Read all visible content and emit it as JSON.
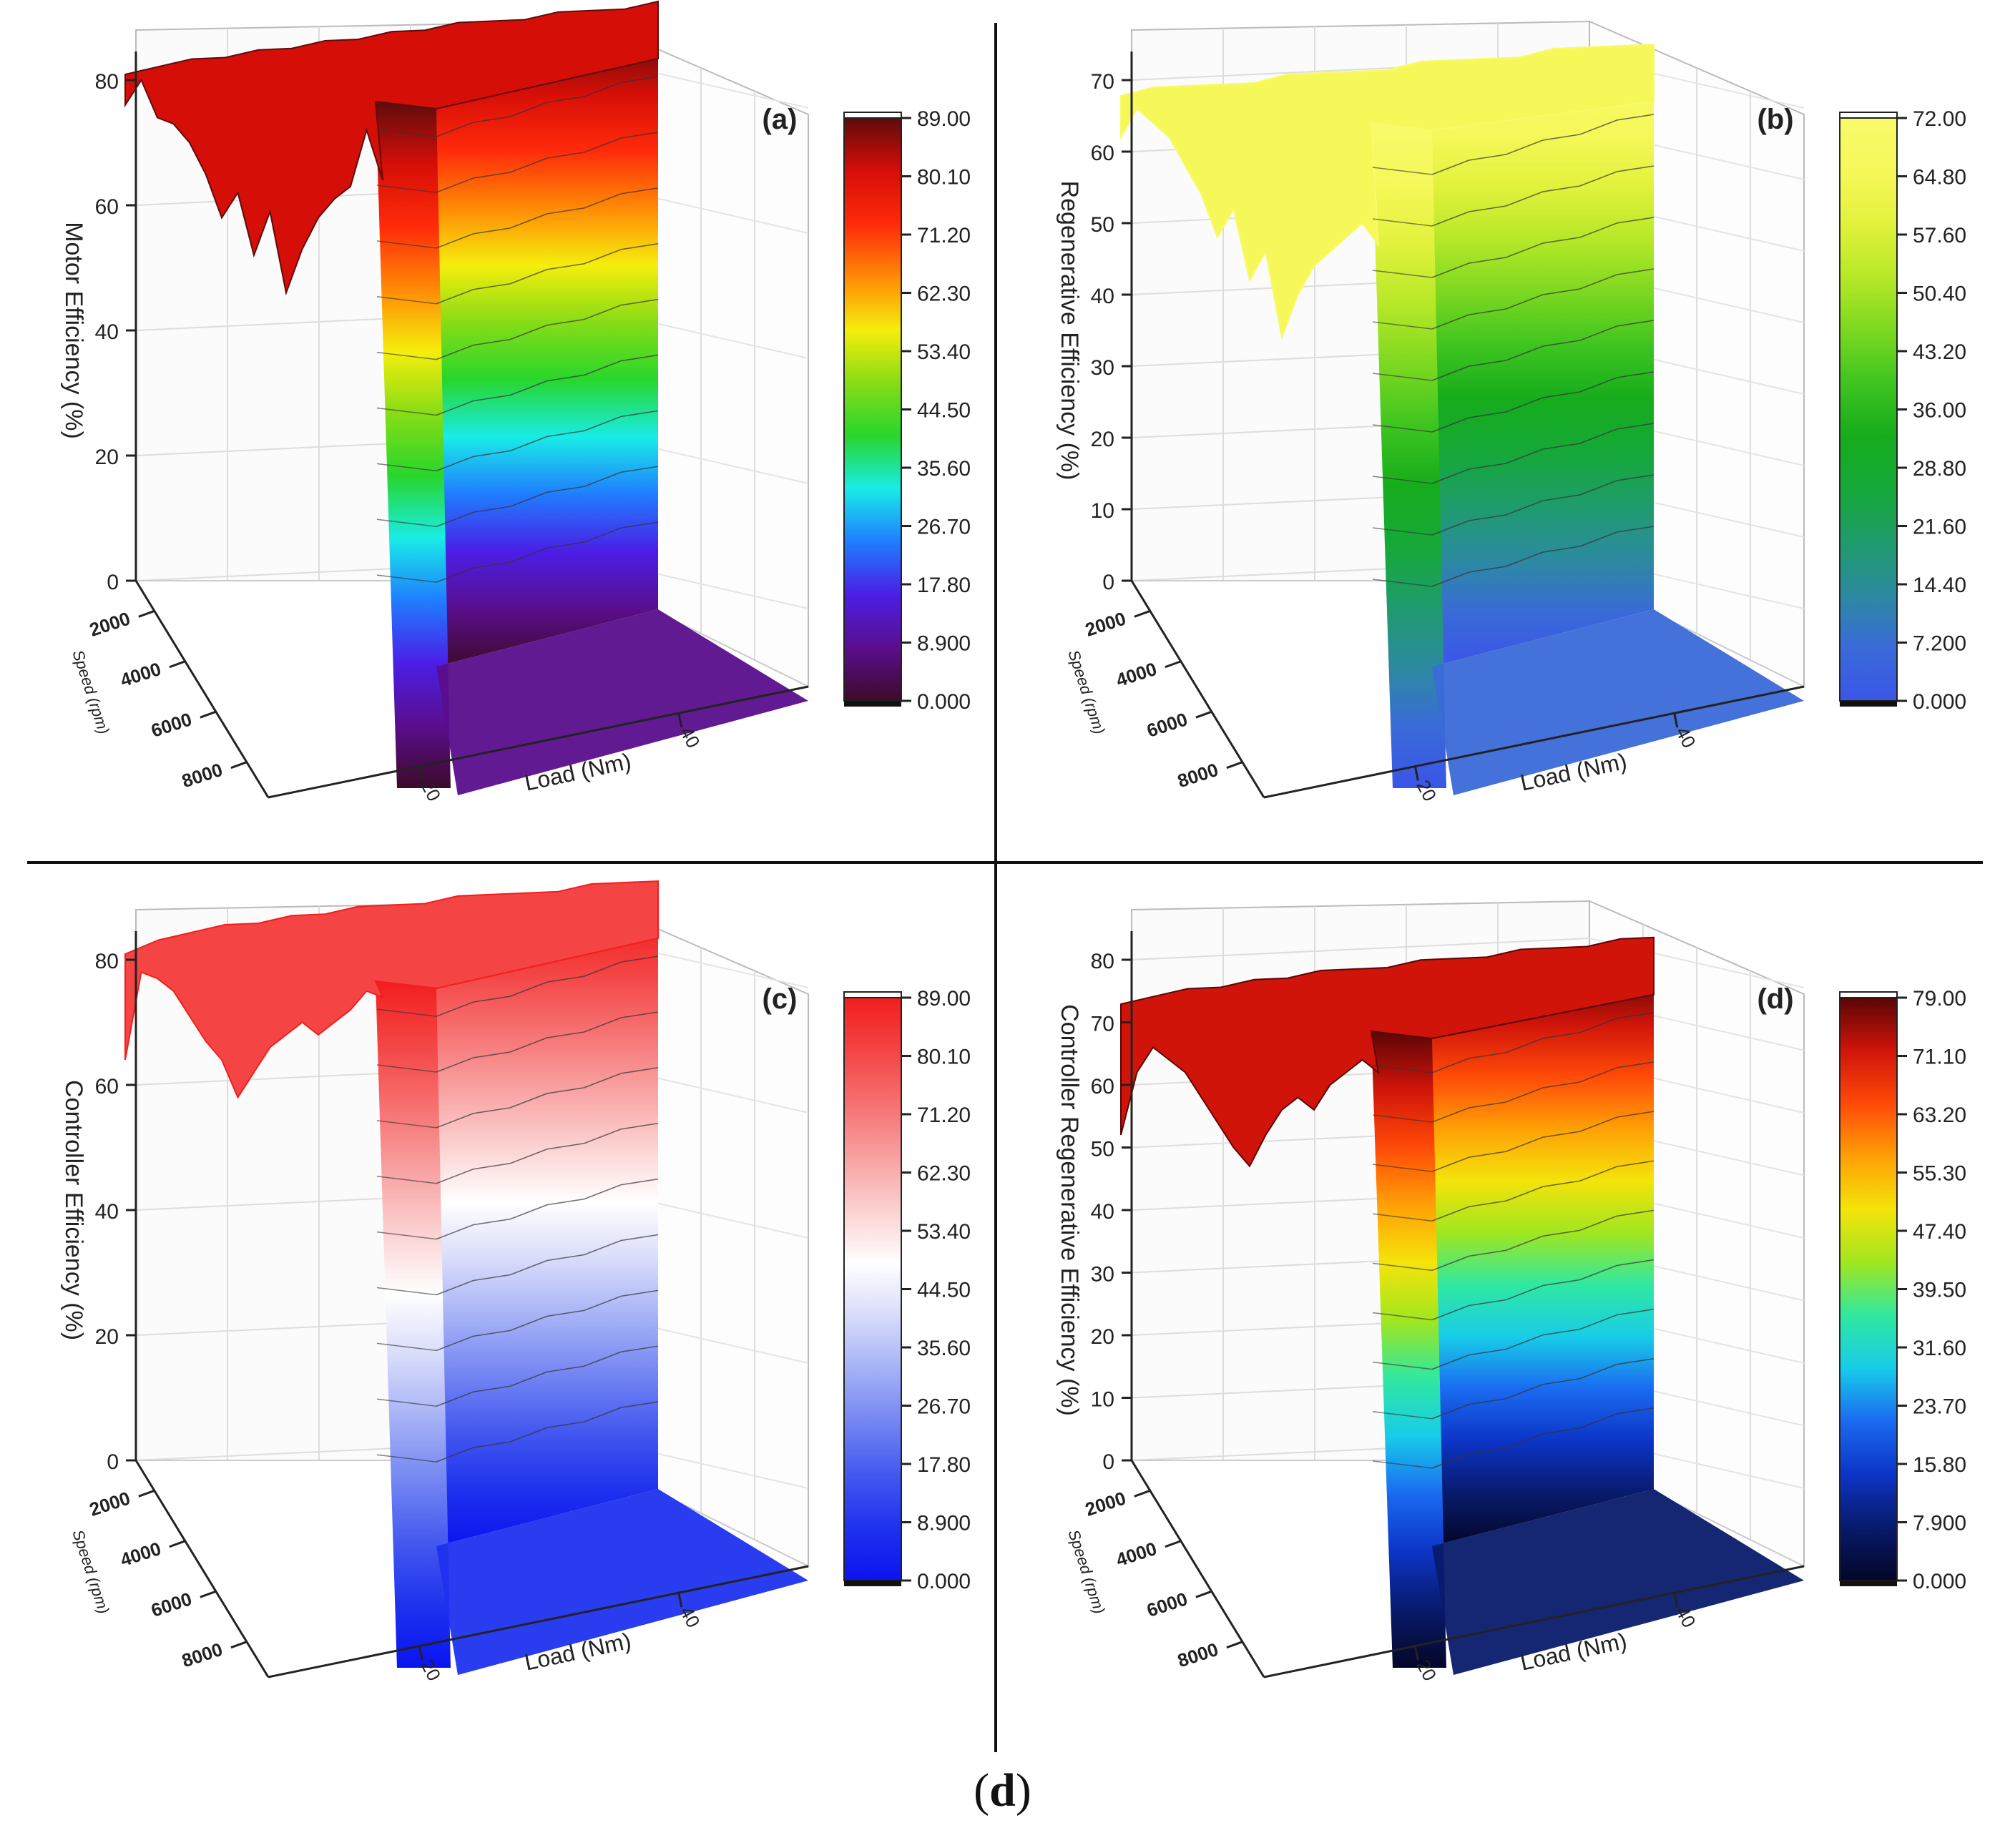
{
  "figure": {
    "caption_open": "(",
    "caption_letter": "d",
    "caption_close": ")"
  },
  "chart_data": [
    {
      "type": "surface3d",
      "panel_label": "(a)",
      "zlabel": "Motor Efficiency (%)",
      "xlabel": "Load (Nm)",
      "ylabel": "Speed (rpm)",
      "z_ticks": [
        "0",
        "20",
        "40",
        "60",
        "80"
      ],
      "speed_ticks": [
        "2000",
        "4000",
        "6000",
        "8000"
      ],
      "load_ticks": [
        "20",
        "40"
      ],
      "zlim": [
        0,
        89
      ],
      "colorbar_ticks": [
        "89.00",
        "80.10",
        "71.20",
        "62.30",
        "53.40",
        "44.50",
        "35.60",
        "26.70",
        "17.80",
        "8.900",
        "0.000"
      ],
      "colormap": [
        "#3d0a2a",
        "#5a0e8c",
        "#4b1ee6",
        "#1f7dff",
        "#19ece6",
        "#28d62c",
        "#86dc16",
        "#f5ee0c",
        "#ff8a06",
        "#ff2a0a",
        "#d60e08",
        "#5e0c0c"
      ],
      "contour_levels": [
        8.9,
        17.8,
        26.7,
        35.6,
        44.5,
        53.4,
        62.3,
        71.2,
        80.1
      ],
      "top_ridge_values": [
        76,
        80,
        74,
        73,
        70,
        65,
        58,
        62,
        52,
        59,
        46,
        53,
        58,
        61,
        63,
        72,
        64
      ],
      "top_plateau_values": [
        80,
        81,
        82,
        82,
        83,
        83,
        84,
        84,
        85,
        85,
        86,
        86,
        86,
        87,
        87,
        87,
        88
      ]
    },
    {
      "type": "surface3d",
      "panel_label": "(b)",
      "zlabel": "Regenerative Efficiency (%)",
      "xlabel": "Load (Nm)",
      "ylabel": "Speed (rpm)",
      "z_ticks": [
        "0",
        "10",
        "20",
        "30",
        "40",
        "50",
        "60",
        "70"
      ],
      "speed_ticks": [
        "2000",
        "4000",
        "6000",
        "8000"
      ],
      "load_ticks": [
        "20",
        "40"
      ],
      "zlim": [
        0,
        72
      ],
      "colorbar_ticks": [
        "72.00",
        "64.80",
        "57.60",
        "50.40",
        "43.20",
        "36.00",
        "28.80",
        "21.60",
        "14.40",
        "7.200",
        "0.000"
      ],
      "colormap": [
        "#3a55e8",
        "#3a6ad8",
        "#2c8aa0",
        "#1f9c6c",
        "#16a838",
        "#16ac1c",
        "#3ec420",
        "#7cd820",
        "#b6e828",
        "#e2f23c",
        "#f6f85a",
        "#f8fa6a"
      ],
      "contour_levels": [
        7.2,
        14.4,
        21.6,
        28.8,
        36,
        43.2,
        50.4,
        57.6,
        64.8
      ],
      "top_ridge_values": [
        62,
        66,
        64,
        62,
        58,
        54,
        48,
        52,
        42,
        46,
        34,
        40,
        44,
        46,
        48,
        50,
        47
      ],
      "top_plateau_values": [
        67,
        68,
        68,
        68,
        68,
        69,
        69,
        69,
        69,
        70,
        70,
        70,
        70,
        71,
        71,
        71,
        71
      ]
    },
    {
      "type": "surface3d",
      "panel_label": "(c)",
      "zlabel": "Controller Efficiency (%)",
      "xlabel": "Load (Nm)",
      "ylabel": "Speed (rpm)",
      "z_ticks": [
        "0",
        "20",
        "40",
        "60",
        "80"
      ],
      "speed_ticks": [
        "2000",
        "4000",
        "6000",
        "8000"
      ],
      "load_ticks": [
        "20",
        "40"
      ],
      "zlim": [
        0,
        89
      ],
      "colorbar_ticks": [
        "89.00",
        "80.10",
        "71.20",
        "62.30",
        "53.40",
        "44.50",
        "35.60",
        "26.70",
        "17.80",
        "8.900",
        "0.000"
      ],
      "colormap": [
        "#0a14f0",
        "#1e32ee",
        "#4458f0",
        "#7486f2",
        "#a6b2f6",
        "#d8dcfa",
        "#ffffff",
        "#fbd0d0",
        "#f8a0a0",
        "#f67070",
        "#f44444",
        "#f21e1e"
      ],
      "contour_levels": [
        8.9,
        17.8,
        26.7,
        35.6,
        44.5,
        53.4,
        62.3,
        71.2,
        80.1
      ],
      "top_ridge_values": [
        64,
        78,
        77,
        75,
        71,
        67,
        64,
        58,
        62,
        66,
        68,
        70,
        68,
        70,
        72,
        75,
        74
      ],
      "top_plateau_values": [
        80,
        82,
        83,
        84,
        84,
        85,
        85,
        86,
        86,
        86,
        87,
        87,
        87,
        87,
        88,
        88,
        88
      ]
    },
    {
      "type": "surface3d",
      "panel_label": "(d)",
      "zlabel": "Controller Regenerative Efficiency (%)",
      "xlabel": "Load (Nm)",
      "ylabel": "Speed (rpm)",
      "z_ticks": [
        "0",
        "10",
        "20",
        "30",
        "40",
        "50",
        "60",
        "70",
        "80"
      ],
      "speed_ticks": [
        "2000",
        "4000",
        "6000",
        "8000"
      ],
      "load_ticks": [
        "20",
        "40"
      ],
      "zlim": [
        0,
        79
      ],
      "colorbar_ticks": [
        "79.00",
        "71.10",
        "63.20",
        "55.30",
        "47.40",
        "39.50",
        "31.60",
        "23.70",
        "15.80",
        "7.900",
        "0.000"
      ],
      "colormap": [
        "#040628",
        "#081a6a",
        "#0c34c6",
        "#1a6af0",
        "#18cce8",
        "#30e8a0",
        "#a0e620",
        "#f4e40a",
        "#ffa006",
        "#ff4a08",
        "#d0140a",
        "#5a0606"
      ],
      "contour_levels": [
        7.9,
        15.8,
        23.7,
        31.6,
        39.5,
        47.4,
        55.3,
        63.2,
        71.1
      ],
      "top_ridge_values": [
        52,
        62,
        66,
        64,
        62,
        58,
        54,
        50,
        47,
        52,
        56,
        58,
        56,
        60,
        62,
        64,
        62
      ],
      "top_plateau_values": [
        72,
        73,
        74,
        74,
        75,
        75,
        76,
        76,
        76,
        77,
        77,
        77,
        78,
        78,
        78,
        79,
        79
      ]
    }
  ]
}
